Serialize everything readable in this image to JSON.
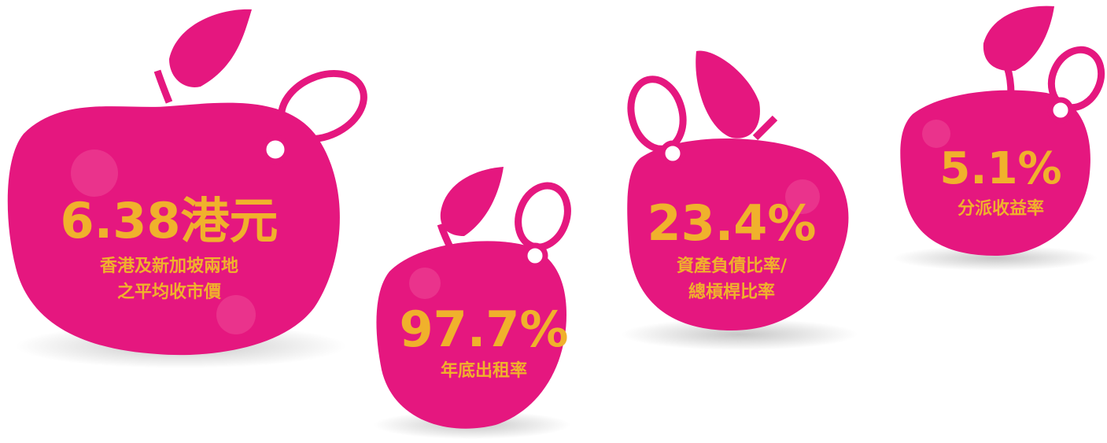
{
  "items": [
    {
      "value": "6.38港元",
      "lines": [
        "香港及新加坡兩地",
        "之平均收市價"
      ]
    },
    {
      "value": "97.7%",
      "lines": [
        "年底出租率"
      ]
    },
    {
      "value": "23.4%",
      "lines": [
        "資產負債比率/",
        "總槓桿比率"
      ]
    },
    {
      "value": "5.1%",
      "lines": [
        "分派收益率"
      ]
    }
  ]
}
